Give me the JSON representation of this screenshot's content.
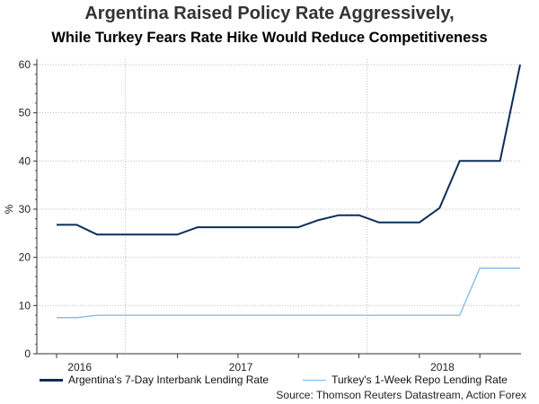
{
  "chart_data": {
    "type": "line",
    "title": "Argentina Raised Policy Rate Aggressively,",
    "subtitle": "While Turkey Fears Rate Hike Would Reduce Competitiveness",
    "xlabel": "",
    "ylabel": "%",
    "ylim": [
      0,
      60
    ],
    "yticks": [
      0,
      10,
      20,
      30,
      40,
      50,
      60
    ],
    "x": [
      "2016-09",
      "2016-10",
      "2016-11",
      "2016-12",
      "2017-01",
      "2017-02",
      "2017-03",
      "2017-04",
      "2017-05",
      "2017-06",
      "2017-07",
      "2017-08",
      "2017-09",
      "2017-10",
      "2017-11",
      "2017-12",
      "2018-01",
      "2018-02",
      "2018-03",
      "2018-04",
      "2018-05",
      "2018-06",
      "2018-07",
      "2018-08"
    ],
    "xtick_labels": [
      {
        "label": "2016",
        "at": 1.5
      },
      {
        "label": "2017",
        "at": 9.5
      },
      {
        "label": "2018",
        "at": 19.5
      }
    ],
    "grid": true,
    "legend_position": "bottom",
    "series": [
      {
        "name": "Argentina's 7-Day Interbank Lending Rate",
        "color": "#0d2d5a",
        "values": [
          26.75,
          26.75,
          24.75,
          24.75,
          24.75,
          24.75,
          24.75,
          26.25,
          26.25,
          26.25,
          26.25,
          26.25,
          26.25,
          27.75,
          28.75,
          28.75,
          27.25,
          27.25,
          27.25,
          30.25,
          40,
          40,
          40,
          60
        ]
      },
      {
        "name": "Turkey's 1-Week Repo Lending Rate",
        "color": "#7ab8ec",
        "values": [
          7.5,
          7.5,
          8,
          8,
          8,
          8,
          8,
          8,
          8,
          8,
          8,
          8,
          8,
          8,
          8,
          8,
          8,
          8,
          8,
          8,
          8,
          17.75,
          17.75,
          17.75
        ]
      }
    ],
    "source": "Source: Thomson Reuters Datastream, Action Forex"
  }
}
